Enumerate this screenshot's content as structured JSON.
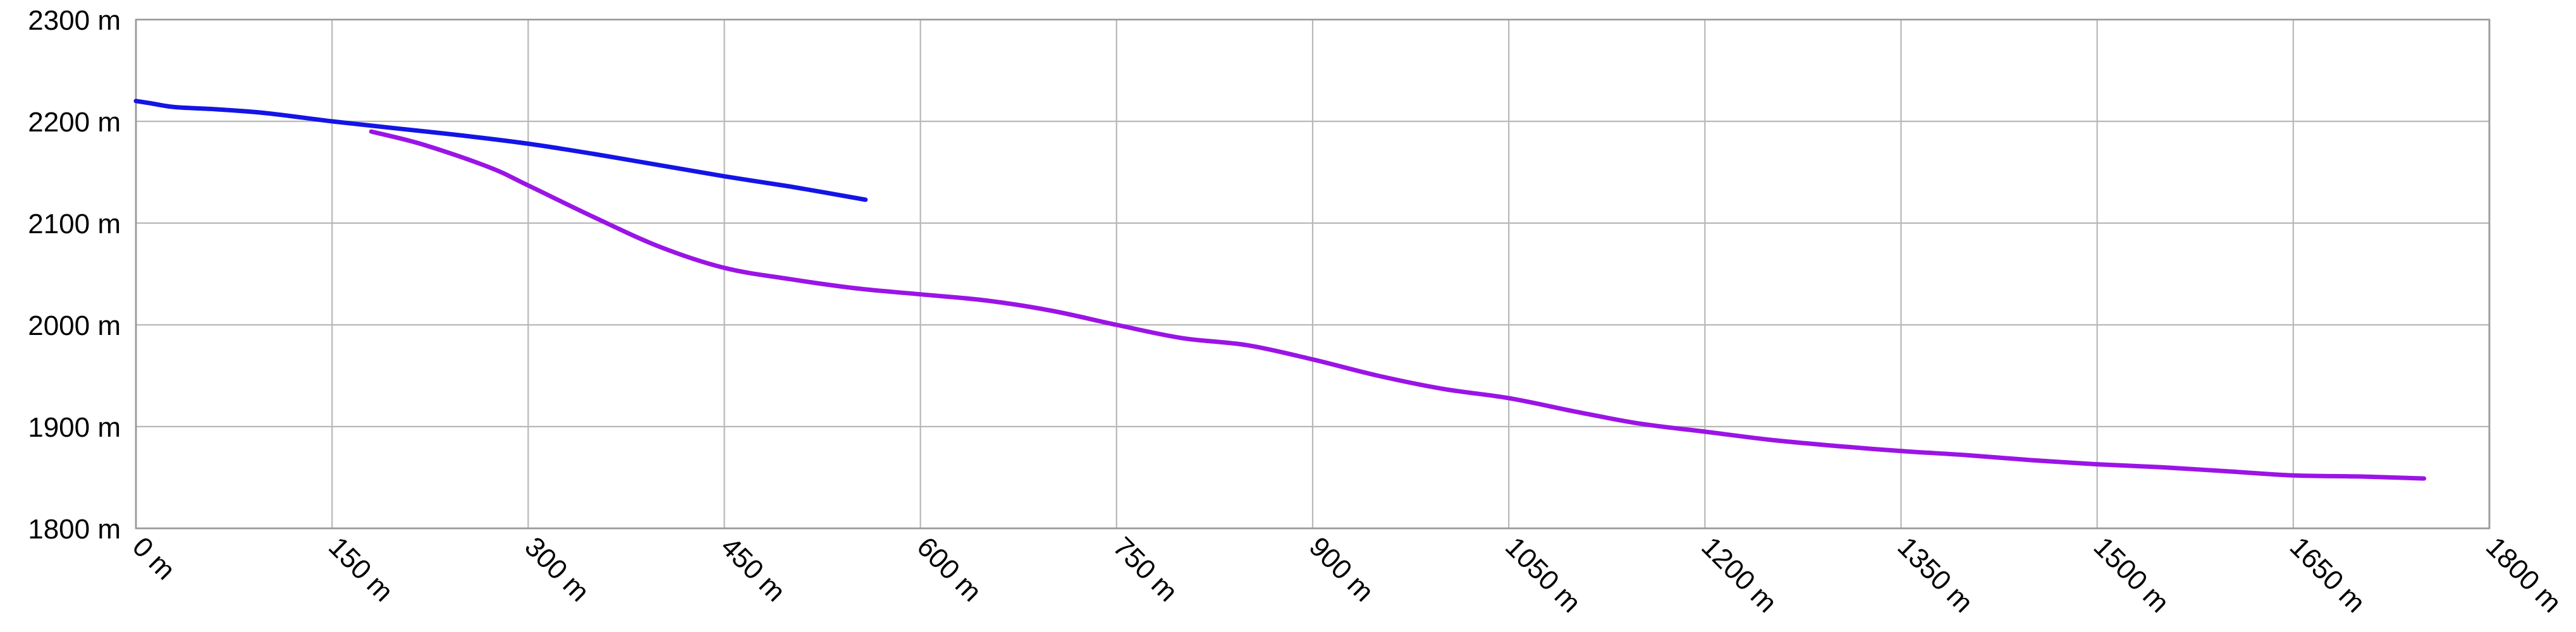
{
  "chart_data": {
    "type": "line",
    "title": "",
    "xlabel": "",
    "ylabel": "",
    "x_unit": "m",
    "y_unit": "m",
    "xlim": [
      0,
      1800
    ],
    "ylim": [
      1800,
      2300
    ],
    "x_ticks": [
      0,
      150,
      300,
      450,
      600,
      750,
      900,
      1050,
      1200,
      1350,
      1500,
      1650,
      1800
    ],
    "y_ticks": [
      1800,
      1900,
      2000,
      2100,
      2200,
      2300
    ],
    "x_tick_labels": [
      "0 m",
      "150 m",
      "300 m",
      "450 m",
      "600 m",
      "750 m",
      "900 m",
      "1050 m",
      "1200 m",
      "1350 m",
      "1500 m",
      "1650 m",
      "1800 m"
    ],
    "y_tick_labels": [
      "1800 m",
      "1900 m",
      "2000 m",
      "2100 m",
      "2200 m",
      "2300 m"
    ],
    "grid": true,
    "legend": false,
    "series": [
      {
        "color": "#1414e6",
        "x": [
          0,
          10,
          30,
          60,
          100,
          150,
          200,
          250,
          300,
          350,
          400,
          450,
          500,
          558
        ],
        "y": [
          2220,
          2218,
          2214,
          2212,
          2208,
          2200,
          2193,
          2186,
          2178,
          2168,
          2157,
          2146,
          2136,
          2123
        ]
      },
      {
        "color": "#9b14e6",
        "x": [
          180,
          220,
          270,
          300,
          350,
          400,
          450,
          500,
          550,
          600,
          650,
          700,
          750,
          800,
          850,
          900,
          950,
          1000,
          1050,
          1100,
          1150,
          1200,
          1250,
          1300,
          1350,
          1400,
          1450,
          1500,
          1550,
          1600,
          1650,
          1700,
          1750
        ],
        "y": [
          2190,
          2177,
          2155,
          2137,
          2106,
          2077,
          2056,
          2045,
          2036,
          2030,
          2024,
          2014,
          2000,
          1987,
          1980,
          1966,
          1950,
          1937,
          1928,
          1915,
          1903,
          1895,
          1887,
          1881,
          1876,
          1872,
          1867,
          1863,
          1860,
          1856,
          1852,
          1851,
          1849
        ]
      }
    ]
  }
}
